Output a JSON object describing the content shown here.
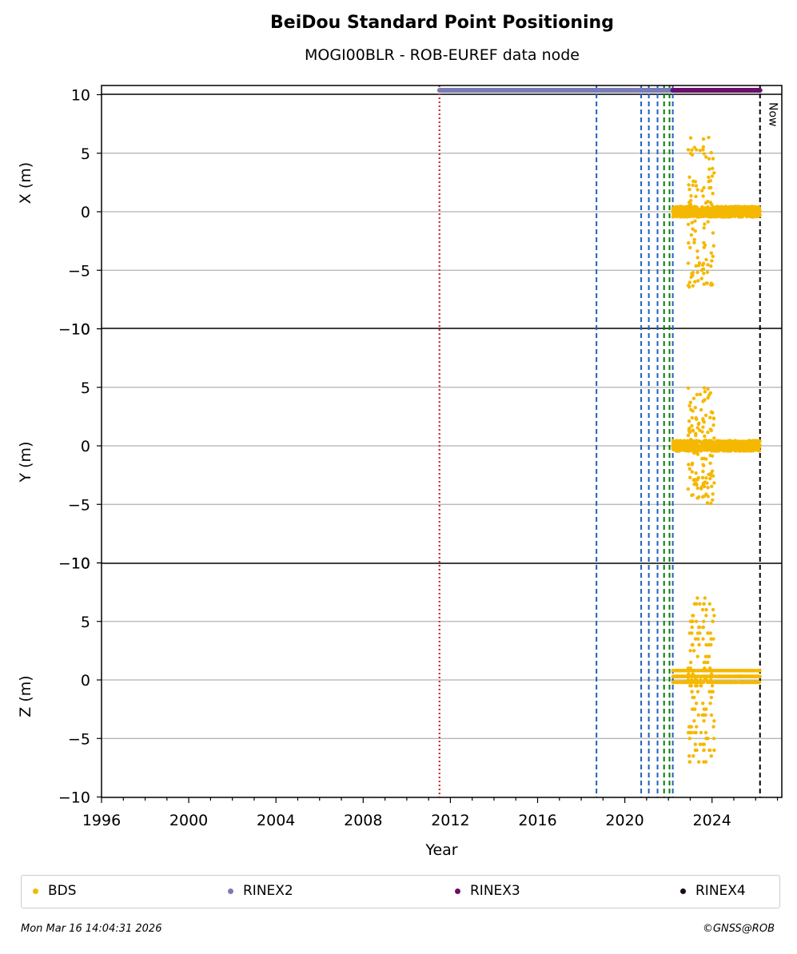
{
  "chart_data": {
    "type": "scatter",
    "title": "BeiDou Standard Point Positioning",
    "subtitle": "MOGI00BLR - ROB-EUREF data node",
    "xlabel": "Year",
    "xlim": [
      1996,
      2027.2
    ],
    "xticks": [
      "1996",
      "2000",
      "2004",
      "2008",
      "2012",
      "2016",
      "2020",
      "2024"
    ],
    "panels": [
      {
        "ylabel": "X (m)",
        "ylim": [
          -10,
          10
        ],
        "yticks": [
          "−10",
          "−5",
          "0",
          "5",
          "10"
        ]
      },
      {
        "ylabel": "Y (m)",
        "ylim": [
          -10,
          10
        ],
        "yticks": [
          "−10",
          "−5",
          "0",
          "5",
          "10"
        ]
      },
      {
        "ylabel": "Z (m)",
        "ylim": [
          -10,
          10
        ],
        "yticks": [
          "−10",
          "−5",
          "0",
          "5",
          "10"
        ]
      }
    ],
    "grid": "horizontal",
    "series": [
      {
        "name": "BDS",
        "color": "#f5b800"
      },
      {
        "name": "RINEX2",
        "color": "#7b7bb8"
      },
      {
        "name": "RINEX3",
        "color": "#6b0f6b"
      },
      {
        "name": "RINEX4",
        "color": "#1a0a1a"
      }
    ],
    "rinex_bars": [
      {
        "series": "RINEX2",
        "start": 2011.5,
        "end": 2022.2
      },
      {
        "series": "RINEX3",
        "start": 2022.2,
        "end": 2026.2
      }
    ],
    "event_lines": [
      {
        "x": 2011.5,
        "color": "#2e8b57",
        "style": "dotted"
      },
      {
        "x": 2011.5,
        "color": "#d62728",
        "style": "dotted"
      },
      {
        "x": 2018.7,
        "color": "#1f5fbf",
        "style": "dashed"
      },
      {
        "x": 2020.75,
        "color": "#1f5fbf",
        "style": "dashed"
      },
      {
        "x": 2021.1,
        "color": "#1f5fbf",
        "style": "dashed"
      },
      {
        "x": 2021.5,
        "color": "#1f5fbf",
        "style": "dashed"
      },
      {
        "x": 2021.8,
        "color": "#008000",
        "style": "dashed"
      },
      {
        "x": 2022.05,
        "color": "#008000",
        "style": "dashed"
      },
      {
        "x": 2022.2,
        "color": "#1f5fbf",
        "style": "dashed"
      },
      {
        "x": 2026.2,
        "color": "#000000",
        "style": "dashed",
        "label": "Now"
      }
    ],
    "bds": {
      "x_range": [
        2022.2,
        2026.2
      ],
      "summary": [
        {
          "x": 2022.5,
          "X": 0.0,
          "Y": 0.0,
          "Z": 0.0
        },
        {
          "x": 2023.0,
          "X": 0.5,
          "Y": 0.5,
          "Z": 1.0
        },
        {
          "x": 2023.4,
          "X": 7.6,
          "Y": 2.5,
          "Z": -3.0
        },
        {
          "x": 2023.9,
          "X": 7.2,
          "Y": 3.2,
          "Z": 4.0
        },
        {
          "x": 2024.0,
          "X": -4.5,
          "Y": -5.5,
          "Z": -1.0
        },
        {
          "x": 2024.5,
          "X": 0.0,
          "Y": 0.0,
          "Z": 0.3
        },
        {
          "x": 2025.0,
          "X": 0.1,
          "Y": 0.1,
          "Z": 0.3
        },
        {
          "x": 2025.5,
          "X": 0.2,
          "Y": 0.2,
          "Z": 0.4
        },
        {
          "x": 2026.0,
          "X": 0.0,
          "Y": 0.0,
          "Z": 0.9
        }
      ]
    }
  },
  "legend": {
    "items": [
      "BDS",
      "RINEX2",
      "RINEX3",
      "RINEX4"
    ]
  },
  "footer": {
    "left": "Mon Mar 16 14:04:31 2026",
    "right": "©GNSS@ROB"
  }
}
